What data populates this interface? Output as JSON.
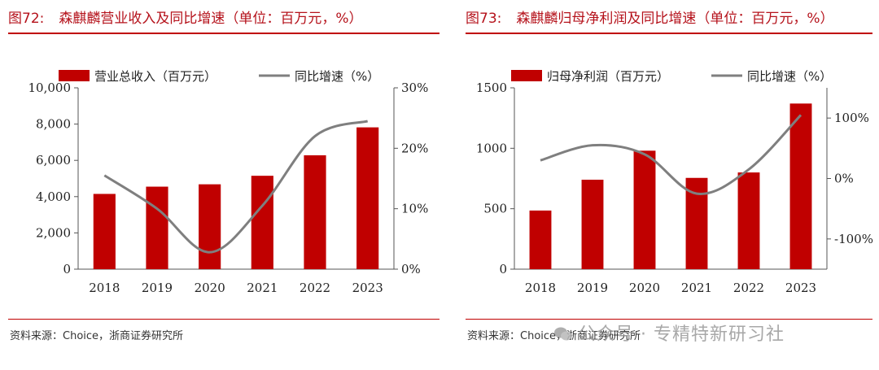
{
  "colors": {
    "bar": "#c00000",
    "line": "#7f7f7f",
    "title": "#b5121b",
    "rule": "#c00000"
  },
  "figures": [
    {
      "id": "left",
      "fig_number": "图72:",
      "title": "森麒麟营业收入及同比增速（单位：百万元，%）",
      "source": "资料来源：Choice，浙商证券研究所"
    },
    {
      "id": "right",
      "fig_number": "图73:",
      "title": "森麒麟归母净利润及同比增速（单位：百万元，%）",
      "source": "资料来源：Choice，浙商证券研究所"
    }
  ],
  "chart_data": [
    {
      "type": "bar",
      "categories": [
        "2018",
        "2019",
        "2020",
        "2021",
        "2022",
        "2023"
      ],
      "series": [
        {
          "name": "营业总收入（百万元）",
          "kind": "bar",
          "axis": "left",
          "values": [
            4150,
            4550,
            4680,
            5150,
            6280,
            7820
          ]
        },
        {
          "name": "同比增速（%）",
          "kind": "line",
          "axis": "right",
          "values": [
            15.5,
            10,
            2.8,
            10.5,
            22,
            24.5
          ]
        }
      ],
      "ylim": [
        0,
        10000
      ],
      "y_ticks": [
        0,
        2000,
        4000,
        6000,
        8000,
        10000
      ],
      "y_tick_labels": [
        "0",
        "2,000",
        "4,000",
        "6,000",
        "8,000",
        "10,000"
      ],
      "y2lim": [
        0,
        30
      ],
      "y2_ticks": [
        0,
        10,
        20,
        30
      ],
      "y2_tick_labels": [
        "0%",
        "10%",
        "20%",
        "30%"
      ],
      "legend_position": "top-left"
    },
    {
      "type": "bar",
      "categories": [
        "2018",
        "2019",
        "2020",
        "2021",
        "2022",
        "2023"
      ],
      "series": [
        {
          "name": "归母净利润（百万元）",
          "kind": "bar",
          "axis": "left",
          "values": [
            485,
            740,
            980,
            755,
            800,
            1370
          ]
        },
        {
          "name": "同比增速（%）",
          "kind": "line",
          "axis": "right",
          "values": [
            30,
            55,
            40,
            -25,
            15,
            105
          ]
        }
      ],
      "ylim": [
        0,
        1500
      ],
      "y_ticks": [
        0,
        500,
        1000,
        1500
      ],
      "y_tick_labels": [
        "0",
        "500",
        "1000",
        "1500"
      ],
      "y2lim": [
        -150,
        150
      ],
      "y2_ticks": [
        -100,
        0,
        100
      ],
      "y2_tick_labels": [
        "-100%",
        "0%",
        "100%"
      ],
      "legend_position": "top-left"
    }
  ],
  "watermark": {
    "text": "公众号 · 专精特新研习社"
  }
}
